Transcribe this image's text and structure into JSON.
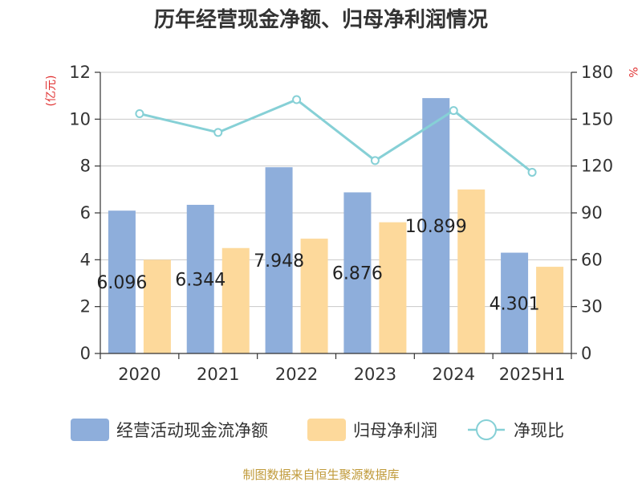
{
  "chart_data": {
    "type": "bar",
    "title": "历年经营现金净额、归母净利润情况",
    "categories": [
      "2020",
      "2021",
      "2022",
      "2023",
      "2024",
      "2025H1"
    ],
    "series": [
      {
        "name": "经营活动现金流净额",
        "type": "bar",
        "axis": "left",
        "color": "#8eaedb",
        "values": [
          6.096,
          6.344,
          7.948,
          6.876,
          10.899,
          4.301
        ],
        "labels": [
          "6.096",
          "6.344",
          "7.948",
          "6.876",
          "10.899",
          "4.301"
        ]
      },
      {
        "name": "归母净利润",
        "type": "bar",
        "axis": "left",
        "color": "#fdd99b",
        "values": [
          4.0,
          4.5,
          4.9,
          5.6,
          7.0,
          3.7
        ]
      },
      {
        "name": "净现比",
        "type": "line",
        "axis": "right",
        "color": "#86d0d6",
        "values": [
          153.5,
          141.5,
          162.5,
          123.5,
          155.5,
          116.0
        ]
      }
    ],
    "y_left": {
      "unit": "(亿元)",
      "min": 0,
      "max": 12,
      "ticks": [
        "0",
        "2",
        "4",
        "6",
        "8",
        "10",
        "12"
      ]
    },
    "y_right": {
      "unit": "%",
      "min": 0,
      "max": 180,
      "ticks": [
        "0",
        "30",
        "60",
        "90",
        "120",
        "150",
        "180"
      ]
    },
    "grid": true,
    "legend_position": "bottom"
  },
  "source_note": "制图数据来自恒生聚源数据库"
}
